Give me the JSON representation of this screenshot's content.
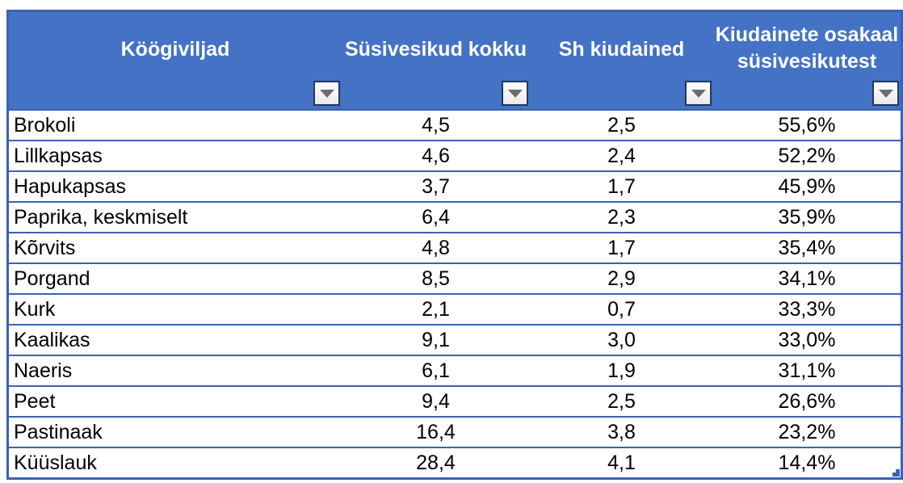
{
  "table": {
    "columns": [
      {
        "label": "Köögiviljad"
      },
      {
        "label": "Süsivesikud kokku"
      },
      {
        "label": "Sh kiudained"
      },
      {
        "label": "Kiudainete osakaal süsivesikutest"
      }
    ],
    "filter_icon": "dropdown-arrow",
    "rows": [
      {
        "name": "Brokoli",
        "carbs": "4,5",
        "fiber": "2,5",
        "share": "55,6%"
      },
      {
        "name": "Lillkapsas",
        "carbs": "4,6",
        "fiber": "2,4",
        "share": "52,2%"
      },
      {
        "name": "Hapukapsas",
        "carbs": "3,7",
        "fiber": "1,7",
        "share": "45,9%"
      },
      {
        "name": "Paprika, keskmiselt",
        "carbs": "6,4",
        "fiber": "2,3",
        "share": "35,9%"
      },
      {
        "name": "Kõrvits",
        "carbs": "4,8",
        "fiber": "1,7",
        "share": "35,4%"
      },
      {
        "name": "Porgand",
        "carbs": "8,5",
        "fiber": "2,9",
        "share": "34,1%"
      },
      {
        "name": "Kurk",
        "carbs": "2,1",
        "fiber": "0,7",
        "share": "33,3%"
      },
      {
        "name": "Kaalikas",
        "carbs": "9,1",
        "fiber": "3,0",
        "share": "33,0%"
      },
      {
        "name": "Naeris",
        "carbs": "6,1",
        "fiber": "1,9",
        "share": "31,1%"
      },
      {
        "name": "Peet",
        "carbs": "9,4",
        "fiber": "2,5",
        "share": "26,6%"
      },
      {
        "name": "Pastinaak",
        "carbs": "16,4",
        "fiber": "3,8",
        "share": "23,2%"
      },
      {
        "name": "Küüslauk",
        "carbs": "28,4",
        "fiber": "4,1",
        "share": "14,4%"
      }
    ],
    "colors": {
      "header_bg": "#4472C4",
      "header_text": "#FFFFFF",
      "border": "#3A62B0",
      "filter_button_border": "#1F3864",
      "filter_arrow": "#6B6B6B",
      "cell_text": "#000000"
    }
  }
}
